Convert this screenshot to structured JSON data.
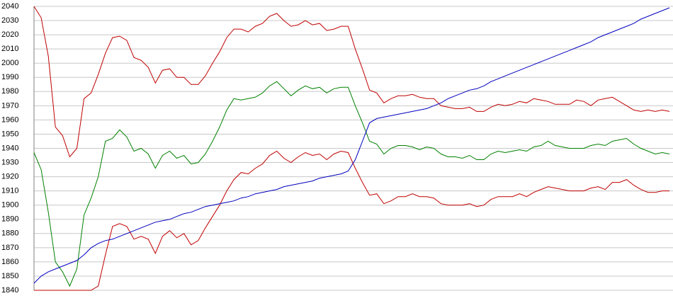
{
  "chart_data": {
    "type": "line",
    "ylim": [
      1840,
      2040
    ],
    "yticks": [
      1840,
      1850,
      1860,
      1870,
      1880,
      1890,
      1900,
      1910,
      1920,
      1930,
      1940,
      1950,
      1960,
      1970,
      1980,
      1990,
      2000,
      2010,
      2020,
      2030,
      2040
    ],
    "grid": true,
    "series": [
      {
        "color": "#c00000",
        "values": [
          2040,
          2032,
          2005,
          1955,
          1949,
          1934,
          1940,
          1975,
          1979,
          1992,
          2007,
          2018,
          2019,
          2016,
          2004,
          2002,
          1997,
          1986,
          1995,
          1996,
          1990,
          1990,
          1985,
          1985,
          1991,
          2000,
          2008,
          2018,
          2024,
          2024,
          2022,
          2026,
          2028,
          2033,
          2035,
          2030,
          2026,
          2027,
          2030,
          2027,
          2028,
          2023,
          2024,
          2026,
          2026,
          2010,
          1996,
          1981,
          1979,
          1972,
          1975,
          1977,
          1977,
          1978,
          1976,
          1975,
          1975,
          1970,
          1969,
          1968,
          1968,
          1969,
          1966,
          1966,
          1969,
          1971,
          1970,
          1971,
          1973,
          1972,
          1975,
          1974,
          1973,
          1971,
          1971,
          1971,
          1974,
          1973,
          1970,
          1974,
          1975,
          1976,
          1973,
          1970,
          1967,
          1966,
          1967,
          1966,
          1967,
          1966
        ]
      },
      {
        "color": "#008000",
        "values": [
          1937,
          1925,
          1895,
          1860,
          1853,
          1843,
          1855,
          1893,
          1905,
          1920,
          1945,
          1947,
          1953,
          1948,
          1938,
          1940,
          1936,
          1926,
          1935,
          1938,
          1933,
          1935,
          1929,
          1930,
          1936,
          1945,
          1955,
          1967,
          1975,
          1974,
          1975,
          1976,
          1979,
          1984,
          1987,
          1982,
          1977,
          1981,
          1984,
          1982,
          1983,
          1979,
          1982,
          1983,
          1983,
          1970,
          1958,
          1945,
          1943,
          1936,
          1940,
          1942,
          1942,
          1941,
          1939,
          1941,
          1940,
          1936,
          1934,
          1934,
          1933,
          1935,
          1932,
          1932,
          1936,
          1938,
          1937,
          1938,
          1939,
          1938,
          1941,
          1942,
          1945,
          1942,
          1941,
          1940,
          1940,
          1940,
          1942,
          1943,
          1942,
          1945,
          1946,
          1947,
          1943,
          1940,
          1938,
          1936,
          1937,
          1936
        ]
      },
      {
        "color": "#c00000",
        "values": [
          1840,
          1840,
          1840,
          1840,
          1840,
          1840,
          1840,
          1840,
          1840,
          1843,
          1865,
          1885,
          1887,
          1885,
          1876,
          1878,
          1876,
          1866,
          1878,
          1882,
          1877,
          1880,
          1872,
          1875,
          1884,
          1892,
          1900,
          1910,
          1918,
          1923,
          1922,
          1926,
          1929,
          1935,
          1938,
          1933,
          1930,
          1934,
          1937,
          1935,
          1936,
          1932,
          1936,
          1938,
          1937,
          1926,
          1916,
          1907,
          1908,
          1901,
          1903,
          1906,
          1906,
          1908,
          1906,
          1906,
          1905,
          1901,
          1900,
          1900,
          1900,
          1901,
          1899,
          1900,
          1904,
          1906,
          1906,
          1906,
          1908,
          1906,
          1909,
          1911,
          1913,
          1912,
          1911,
          1910,
          1910,
          1910,
          1912,
          1913,
          1911,
          1916,
          1916,
          1918,
          1914,
          1911,
          1909,
          1909,
          1910,
          1910
        ]
      },
      {
        "color": "#0000c0",
        "values": [
          1845,
          1850,
          1853,
          1855,
          1857,
          1859,
          1861,
          1865,
          1870,
          1873,
          1875,
          1876,
          1878,
          1880,
          1882,
          1884,
          1886,
          1888,
          1889,
          1890,
          1892,
          1894,
          1895,
          1897,
          1899,
          1900,
          1901,
          1902,
          1903,
          1905,
          1906,
          1908,
          1909,
          1910,
          1911,
          1913,
          1914,
          1915,
          1916,
          1917,
          1919,
          1920,
          1921,
          1922,
          1924,
          1932,
          1945,
          1958,
          1961,
          1962,
          1963,
          1964,
          1965,
          1966,
          1967,
          1968,
          1970,
          1972,
          1975,
          1977,
          1979,
          1981,
          1982,
          1984,
          1987,
          1989,
          1991,
          1993,
          1995,
          1997,
          1999,
          2001,
          2003,
          2005,
          2007,
          2009,
          2011,
          2013,
          2015,
          2018,
          2020,
          2022,
          2024,
          2026,
          2028,
          2031,
          2033,
          2035,
          2037,
          2039
        ]
      }
    ]
  }
}
